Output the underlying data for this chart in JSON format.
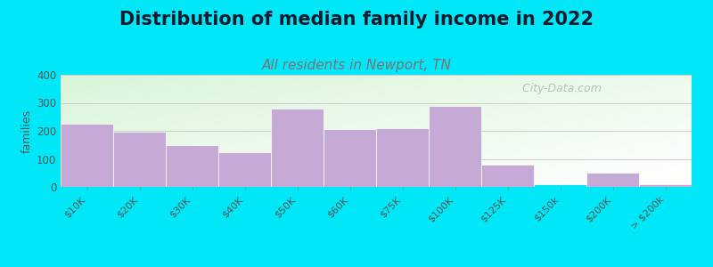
{
  "title": "Distribution of median family income in 2022",
  "subtitle": "All residents in Newport, TN",
  "ylabel": "families",
  "categories": [
    "$10K",
    "$20K",
    "$30K",
    "$40K",
    "$50K",
    "$60K",
    "$75K",
    "$100K",
    "$125K",
    "$150k",
    "$200K",
    "> $200k"
  ],
  "values": [
    225,
    197,
    148,
    123,
    280,
    205,
    210,
    290,
    80,
    0,
    52,
    10
  ],
  "bar_color": "#c4aad4",
  "bar_edgecolor": "#ffffff",
  "ylim": [
    0,
    400
  ],
  "yticks": [
    0,
    100,
    200,
    300,
    400
  ],
  "background_outer": "#00e8f8",
  "plot_bg_topleft": "#d8f0d8",
  "plot_bg_bottomright": "#f8fff8",
  "title_fontsize": 15,
  "subtitle_fontsize": 11,
  "subtitle_color": "#807070",
  "ylabel_fontsize": 9,
  "watermark_text": "  City-Data.com",
  "watermark_color": "#aabbaa"
}
